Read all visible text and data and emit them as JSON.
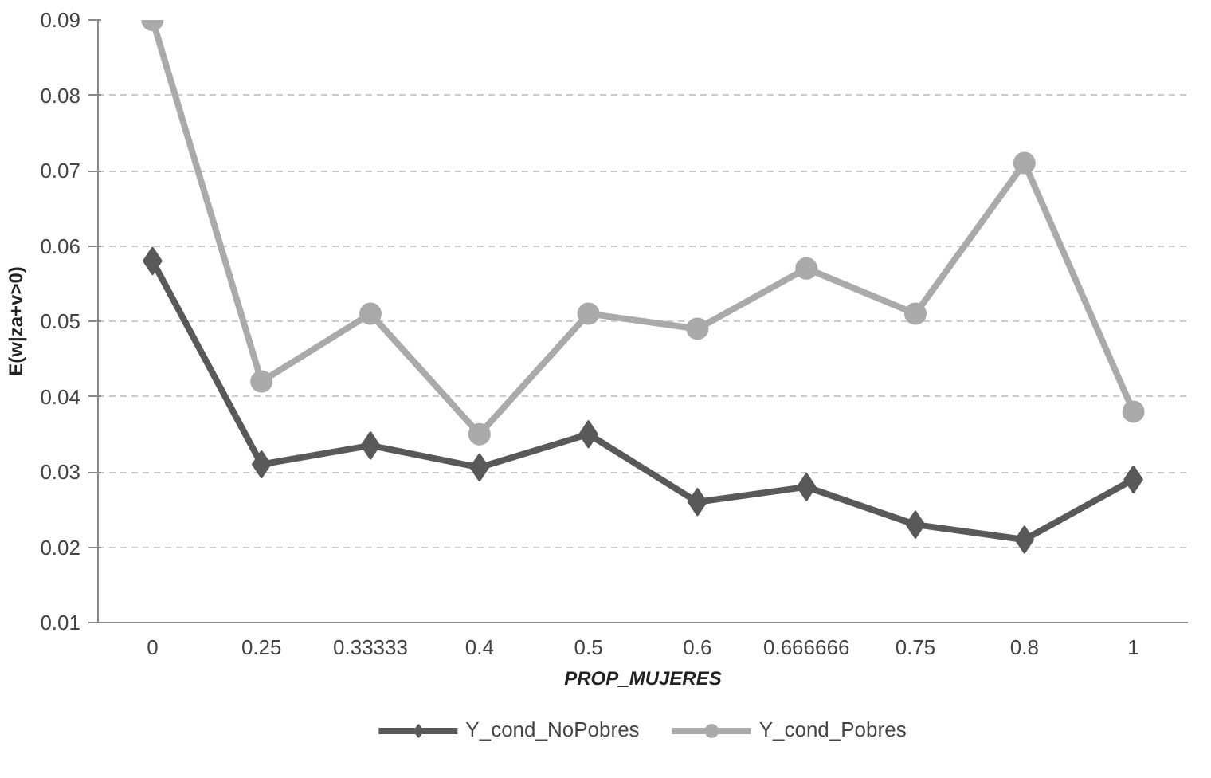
{
  "chart_data": {
    "type": "line",
    "xlabel": "PROP_MUJERES",
    "ylabel": "E(w|za+v>0)",
    "categories": [
      "0",
      "0.25",
      "0.33333",
      "0.4",
      "0.5",
      "0.6",
      "0.666666",
      "0.75",
      "0.8",
      "1"
    ],
    "series": [
      {
        "name": "Y_cond_NoPobres",
        "color": "#595959",
        "marker": "diamond",
        "values": [
          0.058,
          0.031,
          0.0335,
          0.0306,
          0.035,
          0.026,
          0.028,
          0.023,
          0.021,
          0.029
        ]
      },
      {
        "name": "Y_cond_Pobres",
        "color": "#aaaaaa",
        "marker": "circle",
        "values": [
          0.09,
          0.042,
          0.051,
          0.035,
          0.051,
          0.049,
          0.057,
          0.051,
          0.071,
          0.038
        ]
      }
    ],
    "ylim": [
      0.01,
      0.09
    ],
    "yticks": [
      0.01,
      0.02,
      0.03,
      0.04,
      0.05,
      0.06,
      0.07,
      0.08,
      0.09
    ],
    "grid": "y",
    "legend": "bottom",
    "line_style": "solid"
  }
}
